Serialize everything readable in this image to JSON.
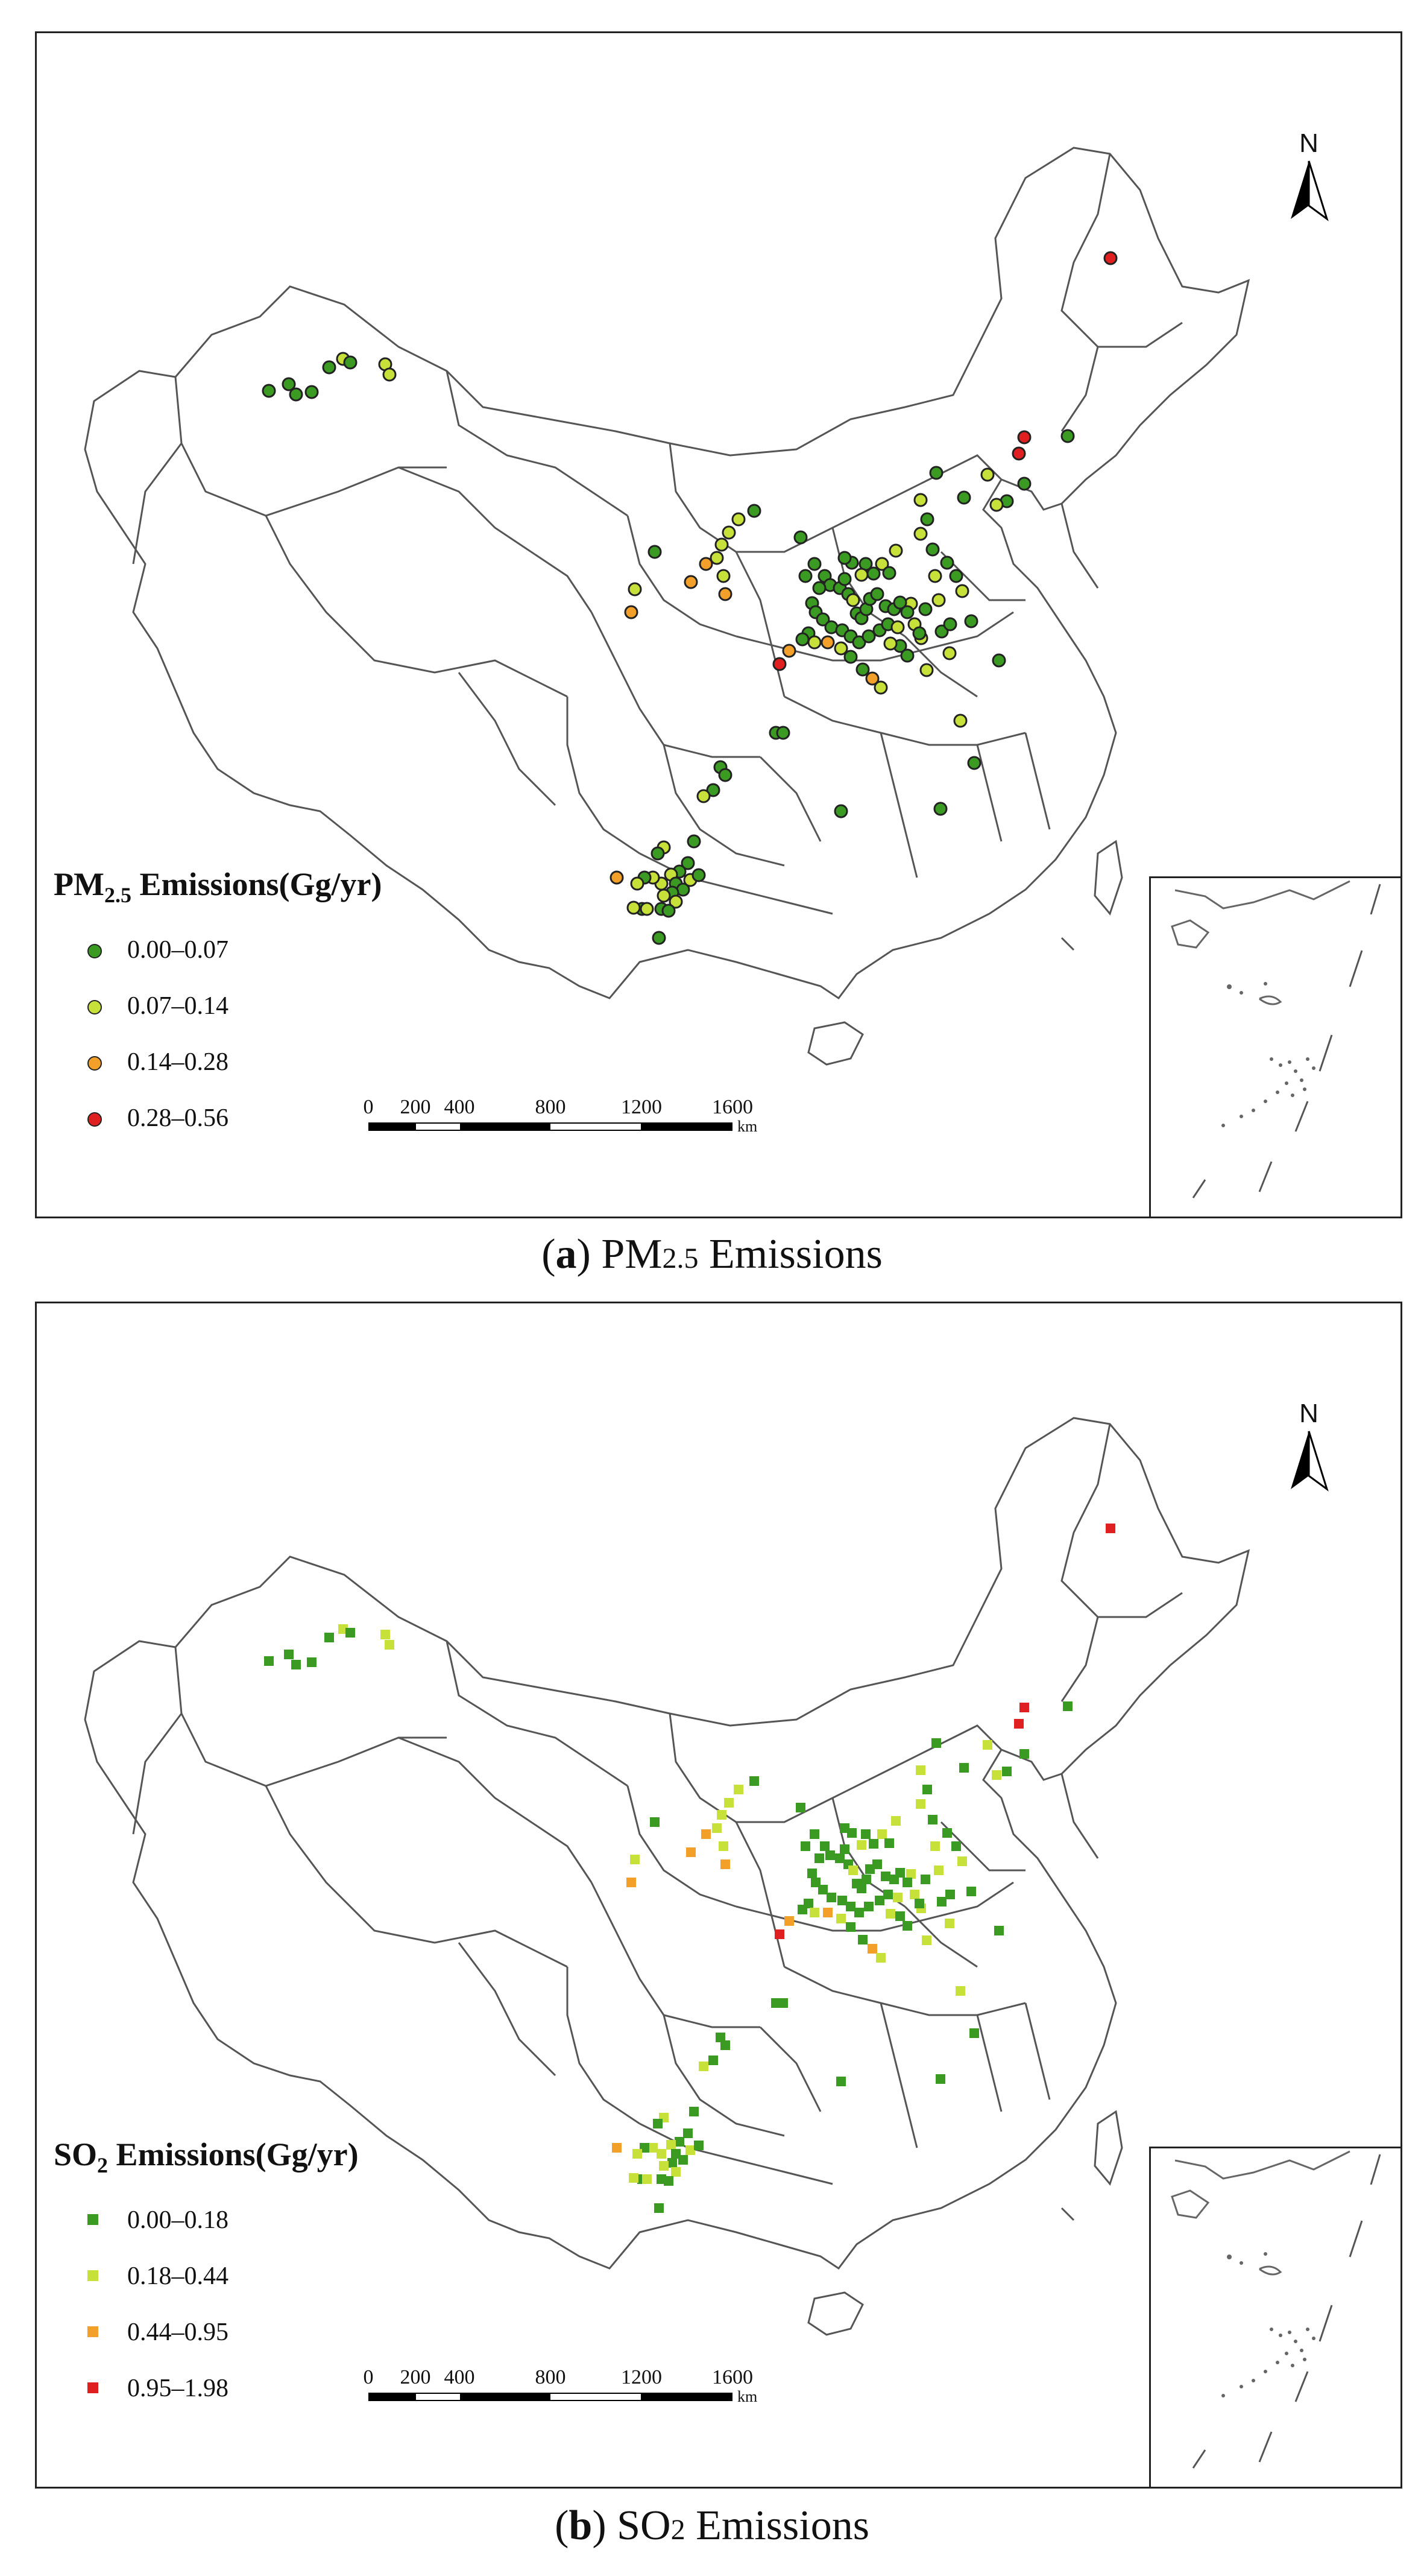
{
  "panels": [
    {
      "id": "a",
      "legend": {
        "title_prefix": "PM",
        "title_sub": "2.5",
        "title_suffix": " Emissions(Gg/yr)",
        "marker": "circle",
        "classes": [
          {
            "label": "0.00–0.07",
            "color": "#3a9a22"
          },
          {
            "label": "0.07–0.14",
            "color": "#c8e03a"
          },
          {
            "label": "0.14–0.28",
            "color": "#f3a02a"
          },
          {
            "label": "0.28–0.56",
            "color": "#e02020"
          }
        ]
      },
      "caption": {
        "open": "(",
        "letter": "a",
        "close": ")",
        "pre": " PM",
        "sub": "2.5",
        "post": " Emissions"
      }
    },
    {
      "id": "b",
      "legend": {
        "title_prefix": "SO",
        "title_sub": "2",
        "title_suffix": " Emissions(Gg/yr)",
        "marker": "square",
        "classes": [
          {
            "label": "0.00–0.18",
            "color": "#3a9a22"
          },
          {
            "label": "0.18–0.44",
            "color": "#c8e03a"
          },
          {
            "label": "0.44–0.95",
            "color": "#f3a02a"
          },
          {
            "label": "0.95–1.98",
            "color": "#e02020"
          }
        ]
      },
      "caption": {
        "open": "(",
        "letter": "b",
        "close": ")",
        "pre": " SO",
        "sub": "2",
        "post": " Emissions"
      }
    }
  ],
  "scale_bar": {
    "ticks": [
      "0",
      "200",
      "400",
      "800",
      "1200",
      "1600"
    ],
    "unit": "km"
  },
  "north_arrow": {
    "label": "N"
  }
}
